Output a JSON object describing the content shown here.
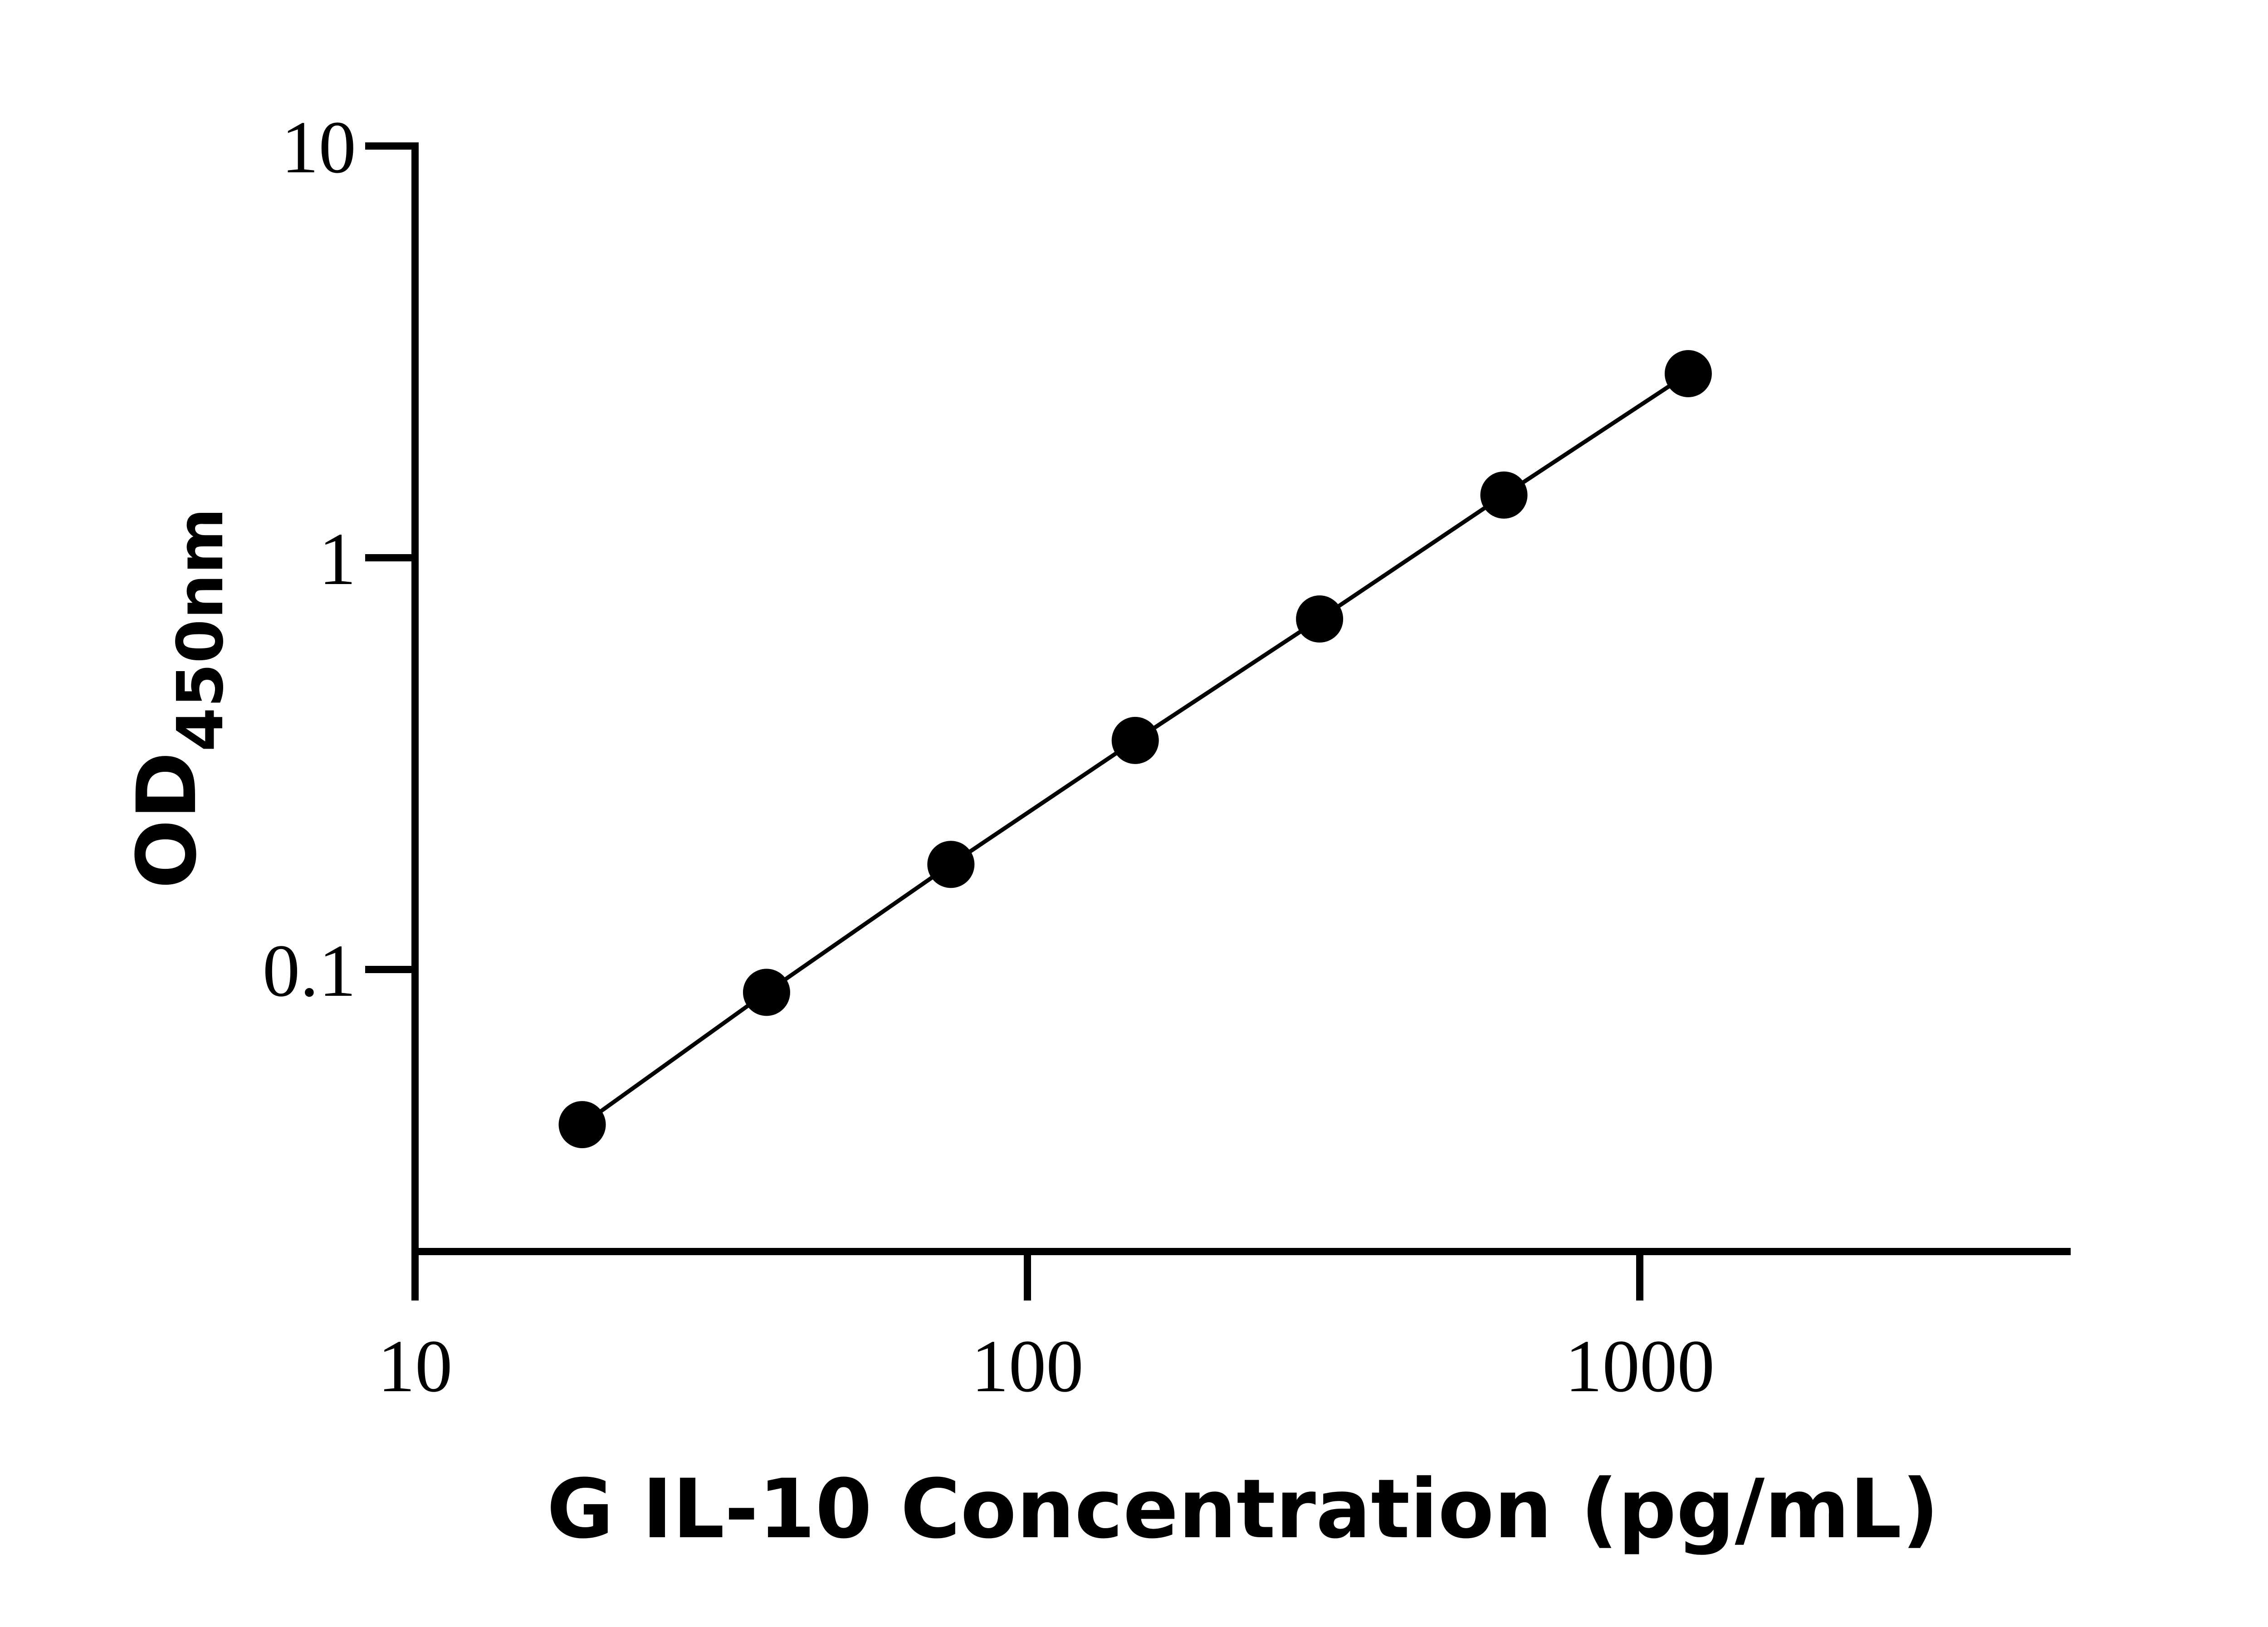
{
  "chart_data": {
    "type": "scatter",
    "title": "",
    "xlabel": "G IL-10 Concentration (pg/mL)",
    "ylabel_main": "OD",
    "ylabel_sub": "450nm",
    "x_scale": "log",
    "y_scale": "log",
    "xlim": [
      10,
      4500
    ],
    "ylim": [
      0.02,
      10
    ],
    "x_ticks": [
      {
        "value": 10,
        "label": "10"
      },
      {
        "value": 100,
        "label": "100"
      },
      {
        "value": 1000,
        "label": "1000"
      }
    ],
    "y_ticks": [
      {
        "value": 0.1,
        "label": "0.1"
      },
      {
        "value": 1,
        "label": "1"
      },
      {
        "value": 10,
        "label": "10"
      }
    ],
    "grid": false,
    "legend": "none",
    "series": [
      {
        "points": [
          {
            "x": 18.75,
            "y": 0.042
          },
          {
            "x": 37.5,
            "y": 0.088
          },
          {
            "x": 75,
            "y": 0.18
          },
          {
            "x": 150,
            "y": 0.36
          },
          {
            "x": 300,
            "y": 0.71
          },
          {
            "x": 600,
            "y": 1.42
          },
          {
            "x": 1200,
            "y": 2.8
          }
        ],
        "color": "#000000",
        "connect": true
      }
    ]
  }
}
